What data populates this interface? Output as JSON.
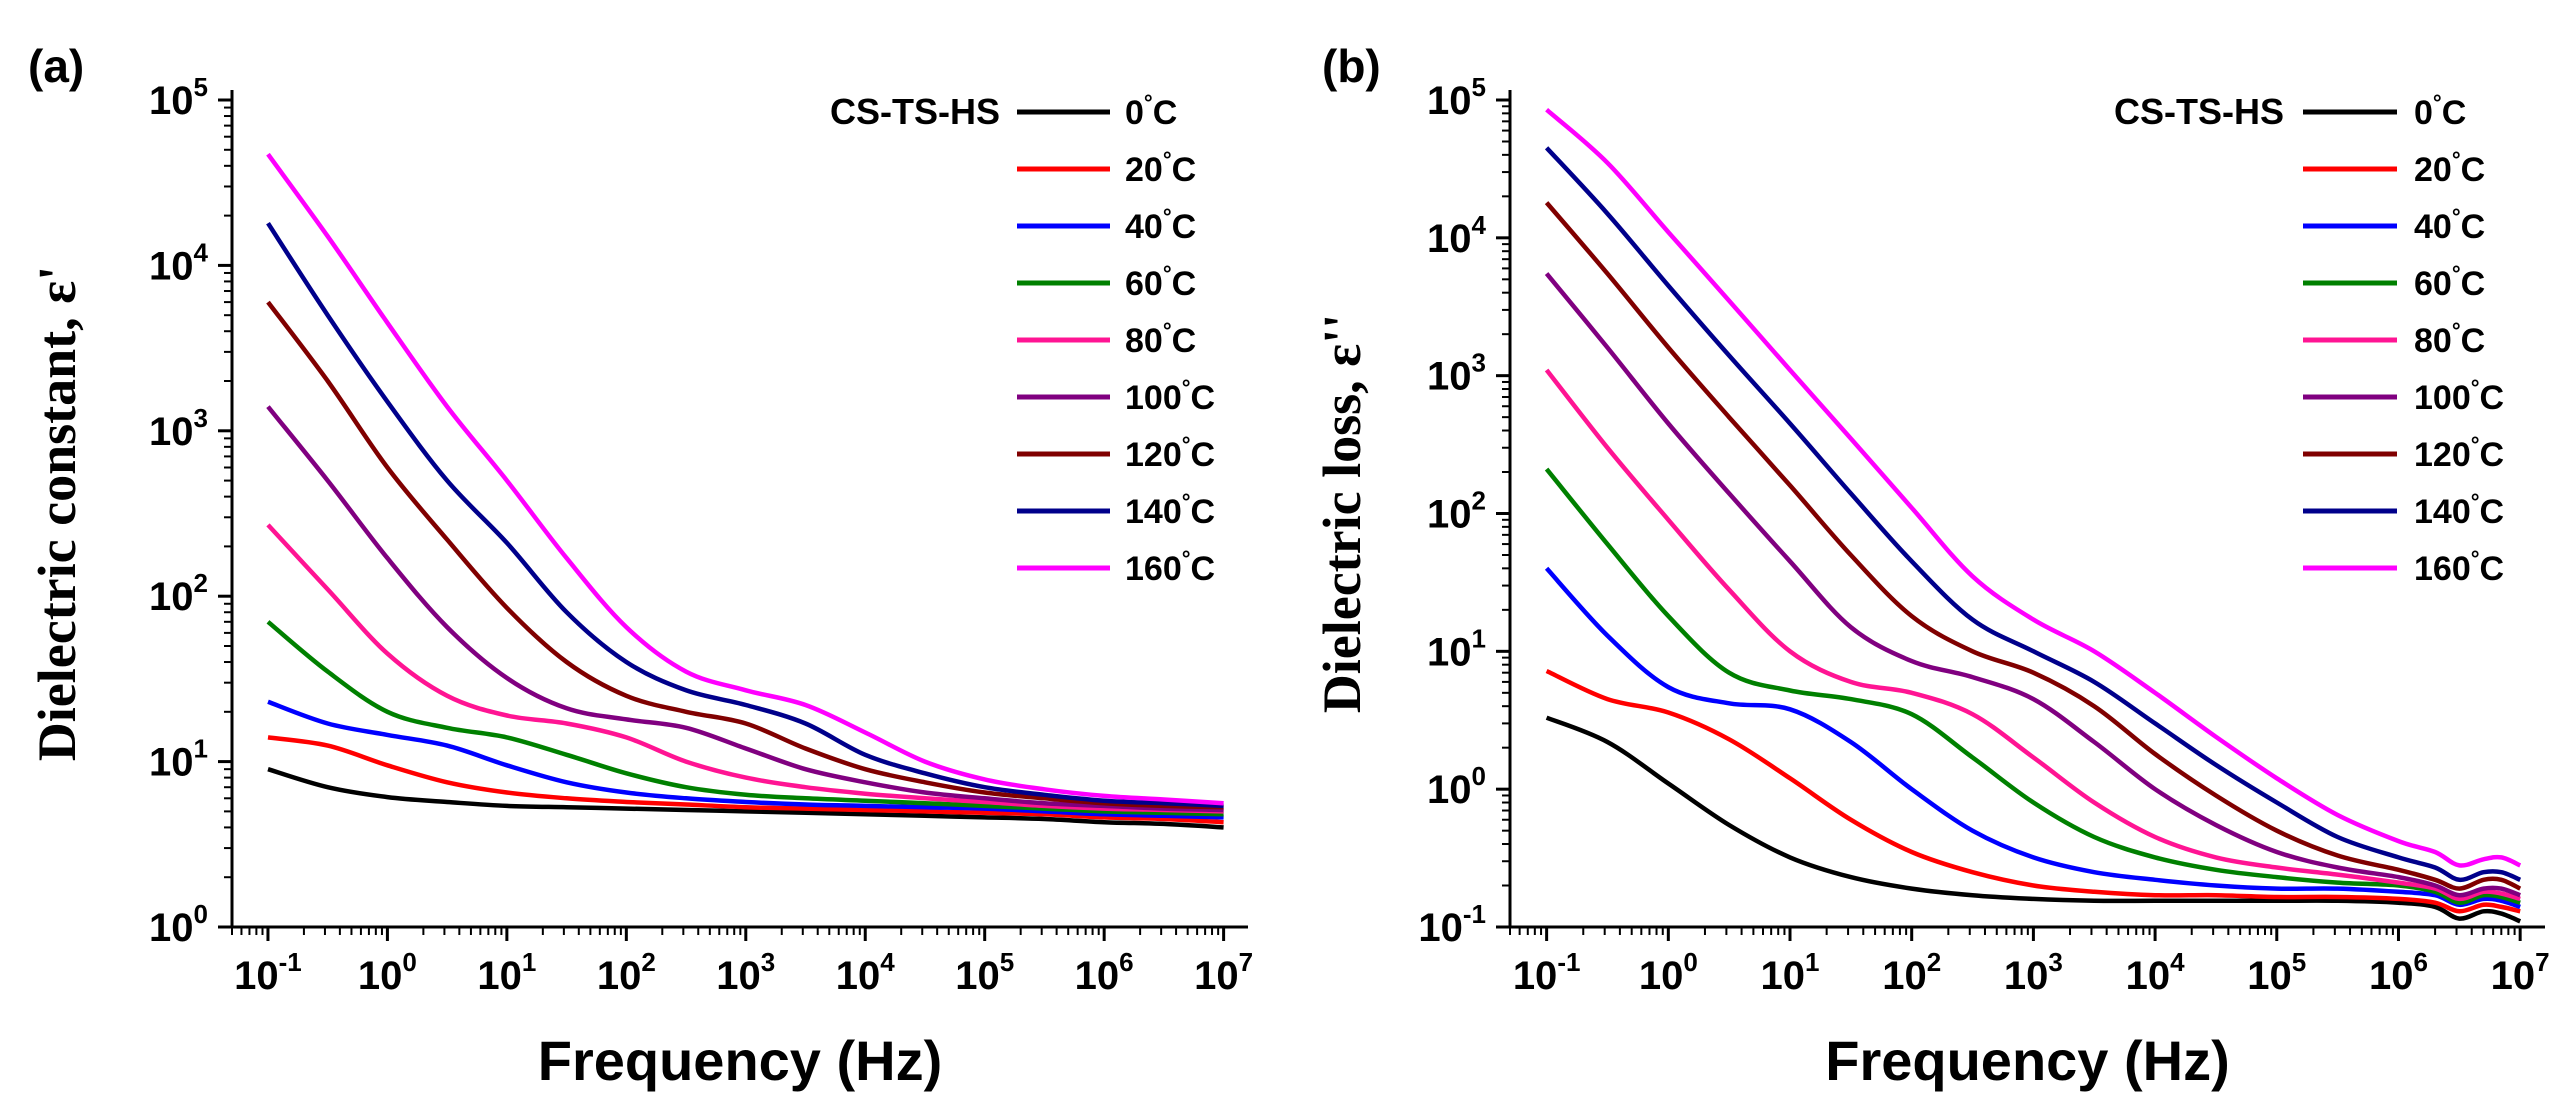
{
  "chart_data": [
    {
      "type": "line",
      "panel_label": "(a)",
      "xlabel": "Frequency (Hz)",
      "ylabel": "Dielectric constant, ε'",
      "x_scale": "log",
      "y_scale": "log",
      "xlim": [
        0.05,
        16000000.0
      ],
      "ylim": [
        1,
        100000
      ],
      "xticks": [
        {
          "value": 0.1,
          "base": "10",
          "exp": "-1"
        },
        {
          "value": 1,
          "base": "10",
          "exp": "0"
        },
        {
          "value": 10,
          "base": "10",
          "exp": "1"
        },
        {
          "value": 100,
          "base": "10",
          "exp": "2"
        },
        {
          "value": 1000,
          "base": "10",
          "exp": "3"
        },
        {
          "value": 10000,
          "base": "10",
          "exp": "4"
        },
        {
          "value": 100000,
          "base": "10",
          "exp": "5"
        },
        {
          "value": 1000000,
          "base": "10",
          "exp": "6"
        },
        {
          "value": 10000000,
          "base": "10",
          "exp": "7"
        }
      ],
      "yticks": [
        {
          "value": 1,
          "base": "10",
          "exp": "0"
        },
        {
          "value": 10,
          "base": "10",
          "exp": "1"
        },
        {
          "value": 100,
          "base": "10",
          "exp": "2"
        },
        {
          "value": 1000,
          "base": "10",
          "exp": "3"
        },
        {
          "value": 10000,
          "base": "10",
          "exp": "4"
        },
        {
          "value": 100000,
          "base": "10",
          "exp": "5"
        }
      ],
      "legend_title": "CS-TS-HS",
      "legend_position": "top-right",
      "x": [
        0.1,
        0.316,
        1,
        3.16,
        10,
        31.6,
        100,
        316,
        1000,
        3160,
        10000,
        31600,
        100000,
        316000,
        1000000,
        3160000,
        10000000
      ],
      "series": [
        {
          "name": "0",
          "unit": "°C",
          "color": "#000000",
          "values": [
            9,
            7,
            6.1,
            5.7,
            5.4,
            5.3,
            5.2,
            5.1,
            5.0,
            4.9,
            4.8,
            4.7,
            4.6,
            4.5,
            4.3,
            4.2,
            4.0
          ]
        },
        {
          "name": "20",
          "unit": "°C",
          "color": "#ff0000",
          "values": [
            14,
            12.5,
            9.5,
            7.5,
            6.5,
            6.0,
            5.7,
            5.5,
            5.3,
            5.2,
            5.1,
            5.0,
            4.9,
            4.8,
            4.6,
            4.5,
            4.3
          ]
        },
        {
          "name": "40",
          "unit": "°C",
          "color": "#0000ff",
          "values": [
            23,
            17,
            14.5,
            12.5,
            9.5,
            7.5,
            6.5,
            6.0,
            5.7,
            5.5,
            5.4,
            5.3,
            5.2,
            5.0,
            4.8,
            4.7,
            4.6
          ]
        },
        {
          "name": "60",
          "unit": "°C",
          "color": "#008000",
          "values": [
            70,
            35,
            20,
            16,
            14,
            11,
            8.5,
            7.0,
            6.3,
            6.0,
            5.8,
            5.6,
            5.4,
            5.2,
            5.0,
            4.9,
            4.8
          ]
        },
        {
          "name": "80",
          "unit": "°C",
          "color": "#ff1493",
          "values": [
            270,
            110,
            45,
            25,
            19,
            17,
            14,
            10,
            8,
            7,
            6.4,
            6.0,
            5.7,
            5.4,
            5.2,
            5.1,
            5.0
          ]
        },
        {
          "name": "100",
          "unit": "°C",
          "color": "#800080",
          "values": [
            1400,
            500,
            170,
            65,
            32,
            21,
            18,
            16,
            12,
            9,
            7.5,
            6.5,
            6.0,
            5.6,
            5.4,
            5.2,
            5.1
          ]
        },
        {
          "name": "120",
          "unit": "°C",
          "color": "#800000",
          "values": [
            6000,
            2000,
            600,
            220,
            85,
            40,
            25,
            20,
            17,
            12,
            9,
            7.5,
            6.5,
            6.0,
            5.6,
            5.4,
            5.3
          ]
        },
        {
          "name": "140",
          "unit": "°C",
          "color": "#00008b",
          "values": [
            18000,
            5000,
            1500,
            500,
            210,
            80,
            40,
            27,
            22,
            17,
            11,
            8.5,
            7.0,
            6.3,
            5.8,
            5.6,
            5.4
          ]
        },
        {
          "name": "160",
          "unit": "°C",
          "color": "#ff00ff",
          "values": [
            47000,
            15000,
            4500,
            1400,
            500,
            170,
            65,
            35,
            27,
            22,
            15,
            10,
            7.8,
            6.8,
            6.2,
            5.9,
            5.6
          ]
        }
      ]
    },
    {
      "type": "line",
      "panel_label": "(b)",
      "xlabel": "Frequency (Hz)",
      "ylabel": "Dielectric loss, ε''",
      "x_scale": "log",
      "y_scale": "log",
      "xlim": [
        0.05,
        16000000.0
      ],
      "ylim": [
        0.1,
        100000
      ],
      "xticks": [
        {
          "value": 0.1,
          "base": "10",
          "exp": "-1"
        },
        {
          "value": 1,
          "base": "10",
          "exp": "0"
        },
        {
          "value": 10,
          "base": "10",
          "exp": "1"
        },
        {
          "value": 100,
          "base": "10",
          "exp": "2"
        },
        {
          "value": 1000,
          "base": "10",
          "exp": "3"
        },
        {
          "value": 10000,
          "base": "10",
          "exp": "4"
        },
        {
          "value": 100000,
          "base": "10",
          "exp": "5"
        },
        {
          "value": 1000000,
          "base": "10",
          "exp": "6"
        },
        {
          "value": 10000000,
          "base": "10",
          "exp": "7"
        }
      ],
      "yticks": [
        {
          "value": 0.1,
          "base": "10",
          "exp": "-1"
        },
        {
          "value": 1,
          "base": "10",
          "exp": "0"
        },
        {
          "value": 10,
          "base": "10",
          "exp": "1"
        },
        {
          "value": 100,
          "base": "10",
          "exp": "2"
        },
        {
          "value": 1000,
          "base": "10",
          "exp": "3"
        },
        {
          "value": 10000,
          "base": "10",
          "exp": "4"
        },
        {
          "value": 100000,
          "base": "10",
          "exp": "5"
        }
      ],
      "legend_title": "CS-TS-HS",
      "legend_position": "top-right",
      "x": [
        0.1,
        0.316,
        1,
        3.16,
        10,
        31.6,
        100,
        316,
        1000,
        3160,
        10000,
        31600,
        100000,
        316000,
        1000000,
        2000000,
        3160000,
        5000000,
        7000000,
        10000000
      ],
      "series": [
        {
          "name": "0",
          "unit": "°C",
          "color": "#000000",
          "values": [
            3.3,
            2.2,
            1.1,
            0.55,
            0.32,
            0.23,
            0.19,
            0.17,
            0.16,
            0.155,
            0.155,
            0.155,
            0.155,
            0.155,
            0.15,
            0.14,
            0.115,
            0.13,
            0.125,
            0.11
          ]
        },
        {
          "name": "20",
          "unit": "°C",
          "color": "#ff0000",
          "values": [
            7.2,
            4.5,
            3.6,
            2.3,
            1.2,
            0.6,
            0.35,
            0.25,
            0.2,
            0.18,
            0.17,
            0.17,
            0.165,
            0.165,
            0.16,
            0.15,
            0.13,
            0.145,
            0.14,
            0.13
          ]
        },
        {
          "name": "40",
          "unit": "°C",
          "color": "#0000ff",
          "values": [
            40,
            13,
            5.5,
            4.2,
            3.8,
            2.2,
            1.0,
            0.5,
            0.32,
            0.25,
            0.22,
            0.2,
            0.19,
            0.19,
            0.18,
            0.17,
            0.145,
            0.16,
            0.155,
            0.14
          ]
        },
        {
          "name": "60",
          "unit": "°C",
          "color": "#008000",
          "values": [
            210,
            60,
            18,
            7,
            5.2,
            4.5,
            3.5,
            1.7,
            0.8,
            0.45,
            0.32,
            0.26,
            0.23,
            0.21,
            0.2,
            0.18,
            0.15,
            0.17,
            0.165,
            0.15
          ]
        },
        {
          "name": "80",
          "unit": "°C",
          "color": "#ff1493",
          "values": [
            1100,
            300,
            90,
            28,
            10,
            6.0,
            5.0,
            3.5,
            1.7,
            0.8,
            0.45,
            0.32,
            0.27,
            0.24,
            0.21,
            0.19,
            0.16,
            0.18,
            0.175,
            0.16
          ]
        },
        {
          "name": "100",
          "unit": "°C",
          "color": "#800080",
          "values": [
            5500,
            1600,
            450,
            140,
            45,
            15,
            8.5,
            6.5,
            4.5,
            2.2,
            1.0,
            0.55,
            0.35,
            0.27,
            0.23,
            0.2,
            0.17,
            0.19,
            0.19,
            0.17
          ]
        },
        {
          "name": "120",
          "unit": "°C",
          "color": "#800000",
          "values": [
            18000,
            5500,
            1600,
            500,
            160,
            50,
            18,
            10,
            7,
            4.0,
            1.8,
            0.9,
            0.5,
            0.33,
            0.26,
            0.22,
            0.19,
            0.22,
            0.22,
            0.19
          ]
        },
        {
          "name": "140",
          "unit": "°C",
          "color": "#00008b",
          "values": [
            45000,
            15000,
            4500,
            1400,
            450,
            140,
            45,
            17,
            10,
            6.0,
            3.0,
            1.5,
            0.8,
            0.45,
            0.32,
            0.27,
            0.22,
            0.25,
            0.25,
            0.22
          ]
        },
        {
          "name": "160",
          "unit": "°C",
          "color": "#ff00ff",
          "values": [
            85000,
            35000,
            11000,
            3500,
            1100,
            350,
            110,
            35,
            17,
            10,
            5.0,
            2.4,
            1.2,
            0.65,
            0.42,
            0.35,
            0.28,
            0.31,
            0.32,
            0.28
          ]
        }
      ]
    }
  ]
}
